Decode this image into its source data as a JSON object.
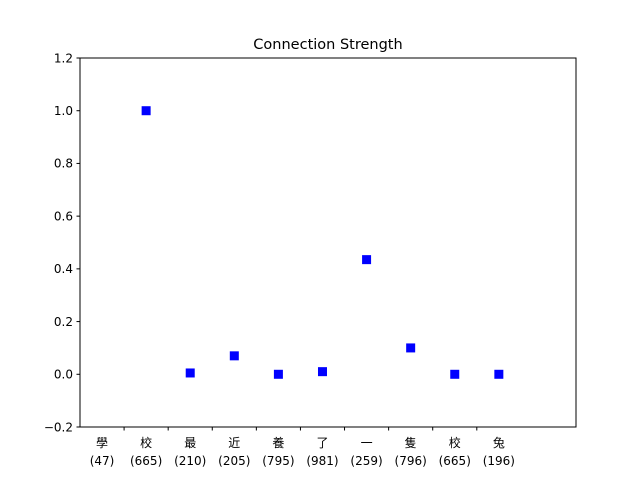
{
  "chart_data": {
    "type": "scatter",
    "title": "Connection Strength",
    "xlabel": "",
    "ylabel": "",
    "ylim": [
      -0.2,
      1.2
    ],
    "yticks": [
      "−0.2",
      "0.0",
      "0.2",
      "0.4",
      "0.6",
      "0.8",
      "1.0",
      "1.2"
    ],
    "categories": [
      {
        "char": "學",
        "count": "(47)"
      },
      {
        "char": "校",
        "count": "(665)"
      },
      {
        "char": "最",
        "count": "(210)"
      },
      {
        "char": "近",
        "count": "(205)"
      },
      {
        "char": "養",
        "count": "(795)"
      },
      {
        "char": "了",
        "count": "(981)"
      },
      {
        "char": "一",
        "count": "(259)"
      },
      {
        "char": "隻",
        "count": "(796)"
      },
      {
        "char": "校",
        "count": "(665)"
      },
      {
        "char": "兔",
        "count": "(196)"
      }
    ],
    "series": [
      {
        "x": [
          0.5,
          1.5,
          2.5,
          3.5,
          4.5,
          5.5,
          6.5,
          7.5,
          8.5
        ],
        "values": [
          1.0,
          0.005,
          0.07,
          0.0,
          0.01,
          0.435,
          0.1,
          0.0,
          0.0
        ],
        "color": "#0000ff",
        "marker": "square"
      }
    ],
    "grid": false
  }
}
